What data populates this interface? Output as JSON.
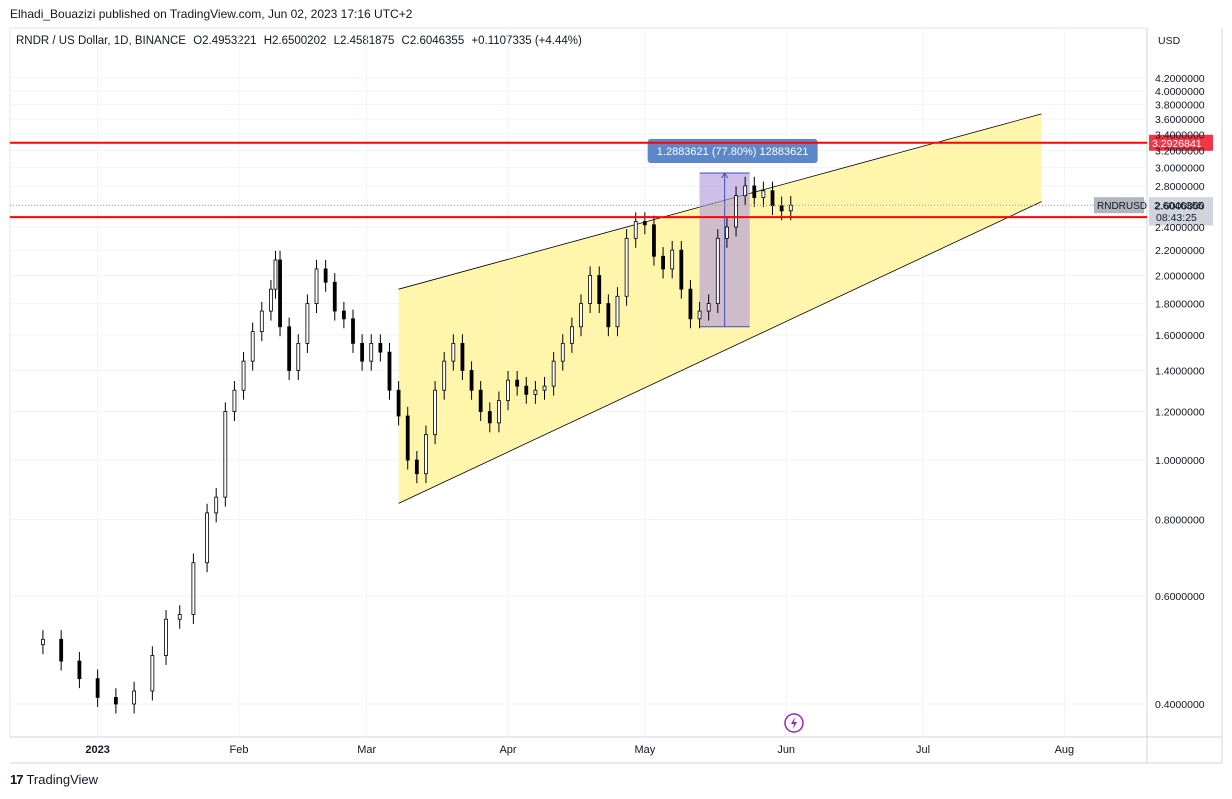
{
  "header": {
    "published_by": "Elhadi_Bouazizi published on TradingView.com, Jun 02, 2023 17:16 UTC+2"
  },
  "legend": {
    "symbol": "RNDR / US Dollar, 1D, BINANCE",
    "open": "O2.4953221",
    "high": "H2.6500202",
    "low": "L2.4581875",
    "close": "C2.6046355",
    "change": "+0.1107335 (+4.44%)"
  },
  "brand": {
    "name": "TradingView",
    "logo_icon": "tradingview-logo-icon"
  },
  "colors": {
    "channel_fill": "#fff59d",
    "channel_line": "#000000",
    "hline": "#ff0000",
    "range_box": "#b39ddb",
    "measure_label_bg": "#5d87c8",
    "candle": "#000000",
    "symbol_tag_bg": "#b2b5be",
    "last_price_bg": "#d1d4dc",
    "red_tag_bg": "#f23645"
  },
  "chart_data": {
    "type": "candlestick",
    "currency": "USD",
    "y_ticks": [
      "4.2000000",
      "4.0000000",
      "3.8000000",
      "3.6000000",
      "3.4000000",
      "3.2000000",
      "3.0000000",
      "2.8000000",
      "2.6000000",
      "2.4000000",
      "2.2000000",
      "2.0000000",
      "1.8000000",
      "1.6000000",
      "1.4000000",
      "1.2000000",
      "1.0000000",
      "0.8000000",
      "0.6000000",
      "0.4000000"
    ],
    "x_ticks": [
      {
        "label": "2023",
        "date": "2023-01-01"
      },
      {
        "label": "Feb",
        "date": "2023-02-01"
      },
      {
        "label": "Mar",
        "date": "2023-03-01"
      },
      {
        "label": "Apr",
        "date": "2023-04-01"
      },
      {
        "label": "May",
        "date": "2023-05-01"
      },
      {
        "label": "Jun",
        "date": "2023-06-01"
      },
      {
        "label": "Jul",
        "date": "2023-07-01"
      },
      {
        "label": "Aug",
        "date": "2023-08-01"
      }
    ],
    "log_scale": true,
    "grid": true,
    "series": [
      {
        "date": "2022-12-20",
        "c": 0.51
      },
      {
        "date": "2022-12-24",
        "c": 0.47
      },
      {
        "date": "2022-12-28",
        "c": 0.44
      },
      {
        "date": "2023-01-01",
        "c": 0.41
      },
      {
        "date": "2023-01-05",
        "c": 0.4
      },
      {
        "date": "2023-01-09",
        "c": 0.42
      },
      {
        "date": "2023-01-13",
        "c": 0.48
      },
      {
        "date": "2023-01-16",
        "c": 0.55
      },
      {
        "date": "2023-01-19",
        "c": 0.56
      },
      {
        "date": "2023-01-22",
        "c": 0.68
      },
      {
        "date": "2023-01-25",
        "c": 0.82
      },
      {
        "date": "2023-01-27",
        "c": 0.87
      },
      {
        "date": "2023-01-29",
        "c": 1.2
      },
      {
        "date": "2023-01-31",
        "c": 1.3
      },
      {
        "date": "2023-02-02",
        "c": 1.45
      },
      {
        "date": "2023-02-04",
        "c": 1.62
      },
      {
        "date": "2023-02-06",
        "c": 1.75
      },
      {
        "date": "2023-02-08",
        "c": 1.9
      },
      {
        "date": "2023-02-09",
        "c": 2.12
      },
      {
        "date": "2023-02-10",
        "c": 1.65
      },
      {
        "date": "2023-02-12",
        "c": 1.4
      },
      {
        "date": "2023-02-14",
        "c": 1.55
      },
      {
        "date": "2023-02-16",
        "c": 1.8
      },
      {
        "date": "2023-02-18",
        "c": 2.05
      },
      {
        "date": "2023-02-20",
        "c": 1.95
      },
      {
        "date": "2023-02-22",
        "c": 1.75
      },
      {
        "date": "2023-02-24",
        "c": 1.7
      },
      {
        "date": "2023-02-26",
        "c": 1.55
      },
      {
        "date": "2023-02-28",
        "c": 1.45
      },
      {
        "date": "2023-03-02",
        "c": 1.55
      },
      {
        "date": "2023-03-04",
        "c": 1.5
      },
      {
        "date": "2023-03-06",
        "c": 1.3
      },
      {
        "date": "2023-03-08",
        "c": 1.18
      },
      {
        "date": "2023-03-10",
        "c": 1.0
      },
      {
        "date": "2023-03-12",
        "c": 0.95
      },
      {
        "date": "2023-03-14",
        "c": 1.1
      },
      {
        "date": "2023-03-16",
        "c": 1.3
      },
      {
        "date": "2023-03-18",
        "c": 1.45
      },
      {
        "date": "2023-03-20",
        "c": 1.55
      },
      {
        "date": "2023-03-22",
        "c": 1.4
      },
      {
        "date": "2023-03-24",
        "c": 1.3
      },
      {
        "date": "2023-03-26",
        "c": 1.2
      },
      {
        "date": "2023-03-28",
        "c": 1.15
      },
      {
        "date": "2023-03-30",
        "c": 1.25
      },
      {
        "date": "2023-04-01",
        "c": 1.35
      },
      {
        "date": "2023-04-03",
        "c": 1.32
      },
      {
        "date": "2023-04-05",
        "c": 1.28
      },
      {
        "date": "2023-04-07",
        "c": 1.3
      },
      {
        "date": "2023-04-09",
        "c": 1.32
      },
      {
        "date": "2023-04-11",
        "c": 1.45
      },
      {
        "date": "2023-04-13",
        "c": 1.55
      },
      {
        "date": "2023-04-15",
        "c": 1.65
      },
      {
        "date": "2023-04-17",
        "c": 1.8
      },
      {
        "date": "2023-04-19",
        "c": 2.0
      },
      {
        "date": "2023-04-21",
        "c": 1.8
      },
      {
        "date": "2023-04-23",
        "c": 1.65
      },
      {
        "date": "2023-04-25",
        "c": 1.85
      },
      {
        "date": "2023-04-27",
        "c": 2.3
      },
      {
        "date": "2023-04-29",
        "c": 2.45
      },
      {
        "date": "2023-05-01",
        "c": 2.42
      },
      {
        "date": "2023-05-03",
        "c": 2.15
      },
      {
        "date": "2023-05-05",
        "c": 2.05
      },
      {
        "date": "2023-05-07",
        "c": 2.2
      },
      {
        "date": "2023-05-09",
        "c": 1.9
      },
      {
        "date": "2023-05-11",
        "c": 1.7
      },
      {
        "date": "2023-05-13",
        "c": 1.75
      },
      {
        "date": "2023-05-15",
        "c": 1.8
      },
      {
        "date": "2023-05-17",
        "c": 2.3
      },
      {
        "date": "2023-05-19",
        "c": 2.4
      },
      {
        "date": "2023-05-21",
        "c": 2.7
      },
      {
        "date": "2023-05-23",
        "c": 2.8
      },
      {
        "date": "2023-05-25",
        "c": 2.68
      },
      {
        "date": "2023-05-27",
        "c": 2.75
      },
      {
        "date": "2023-05-29",
        "c": 2.6
      },
      {
        "date": "2023-05-31",
        "c": 2.55
      },
      {
        "date": "2023-06-02",
        "c": 2.6046355
      }
    ],
    "channel": {
      "upper": [
        {
          "date": "2023-03-08",
          "price": 1.9
        },
        {
          "date": "2023-07-27",
          "price": 3.67
        }
      ],
      "lower": [
        {
          "date": "2023-03-08",
          "price": 0.85
        },
        {
          "date": "2023-07-27",
          "price": 2.64
        }
      ]
    },
    "horizontal_lines": [
      {
        "price": 3.2926841,
        "label": "3.2926841"
      },
      {
        "price": 2.4903497,
        "label": "2.4903497"
      }
    ],
    "price_range": {
      "from_date": "2023-05-13",
      "to_date": "2023-05-24",
      "from_price": 1.65,
      "to_price": 2.94,
      "label": "1.2883621 (77.80%) 12883621"
    },
    "last_price": {
      "symbol": "RNDRUSD",
      "value": "2.6046355",
      "countdown": "08:43:25"
    }
  },
  "misc": {
    "lightning_icon": "lightning-icon"
  }
}
